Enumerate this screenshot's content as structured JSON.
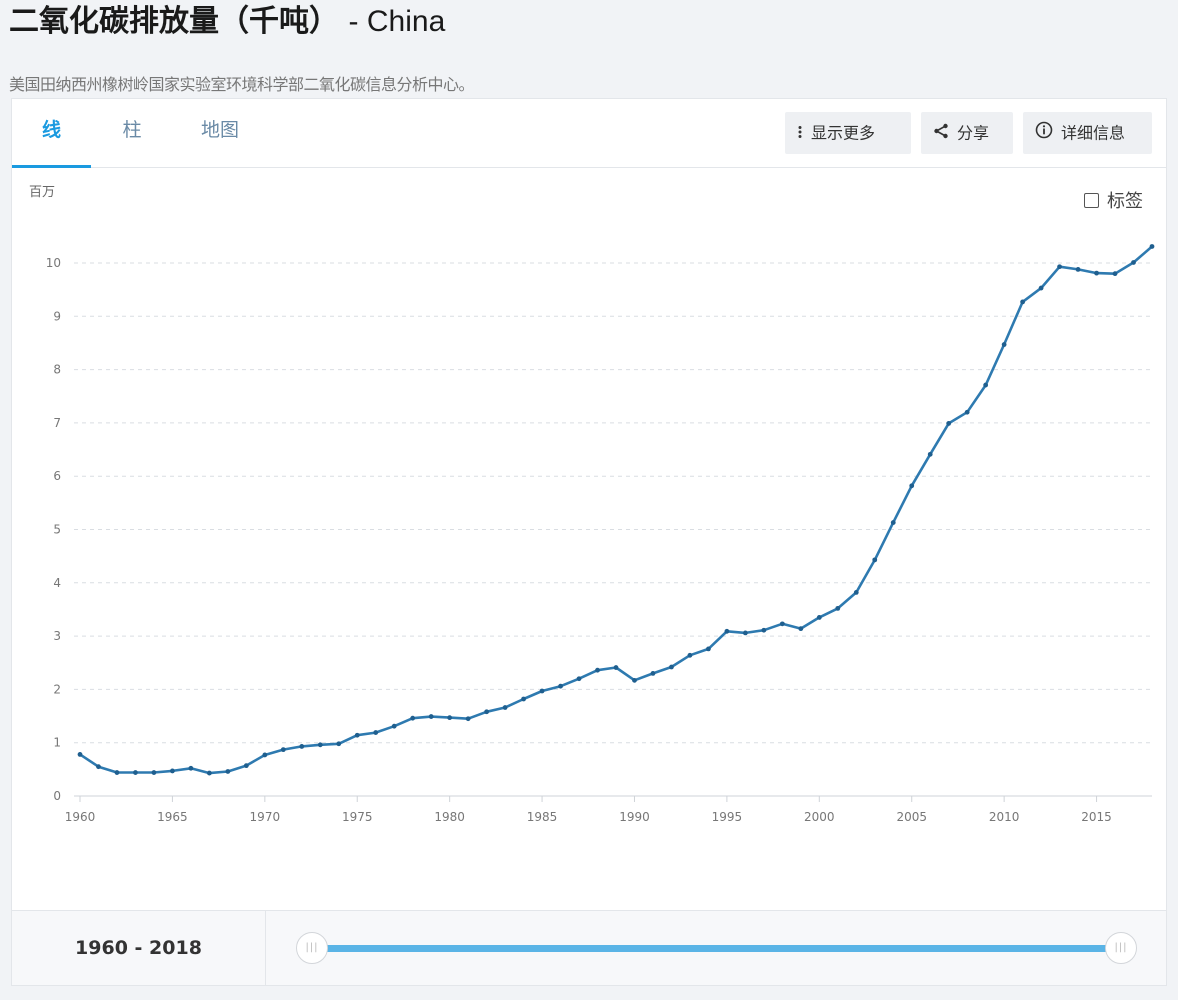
{
  "header": {
    "title": "二氧化碳排放量（千吨）",
    "country": "- China",
    "source": "美国田纳西州橡树岭国家实验室环境科学部二氧化碳信息分析中心。"
  },
  "tabs": [
    {
      "label": "线",
      "active": true
    },
    {
      "label": "柱",
      "active": false
    },
    {
      "label": "地图",
      "active": false
    }
  ],
  "toolbar": {
    "show_more": "显示更多",
    "share": "分享",
    "details": "详细信息"
  },
  "labels_toggle": {
    "label": "标签",
    "checked": false
  },
  "colors": {
    "line": "#2e7ab0",
    "accent": "#1a9ae0"
  },
  "chart_data": {
    "type": "line",
    "unit_label": "百万",
    "xlabel": "",
    "ylabel": "",
    "xlim": [
      1960,
      2018
    ],
    "ylim": [
      0,
      10
    ],
    "yticks": [
      0,
      1,
      2,
      3,
      4,
      5,
      6,
      7,
      8,
      9,
      10
    ],
    "xticks": [
      1960,
      1965,
      1970,
      1975,
      1980,
      1985,
      1990,
      1995,
      2000,
      2005,
      2010,
      2015
    ],
    "grid": true,
    "x": [
      1960,
      1961,
      1962,
      1963,
      1964,
      1965,
      1966,
      1967,
      1968,
      1969,
      1970,
      1971,
      1972,
      1973,
      1974,
      1975,
      1976,
      1977,
      1978,
      1979,
      1980,
      1981,
      1982,
      1983,
      1984,
      1985,
      1986,
      1987,
      1988,
      1989,
      1990,
      1991,
      1992,
      1993,
      1994,
      1995,
      1996,
      1997,
      1998,
      1999,
      2000,
      2001,
      2002,
      2003,
      2004,
      2005,
      2006,
      2007,
      2008,
      2009,
      2010,
      2011,
      2012,
      2013,
      2014,
      2015,
      2016,
      2017,
      2018
    ],
    "series": [
      {
        "values": [
          0.78,
          0.55,
          0.44,
          0.44,
          0.44,
          0.47,
          0.52,
          0.43,
          0.46,
          0.57,
          0.77,
          0.87,
          0.93,
          0.96,
          0.98,
          1.14,
          1.19,
          1.31,
          1.46,
          1.49,
          1.47,
          1.45,
          1.58,
          1.66,
          1.82,
          1.97,
          2.06,
          2.2,
          2.36,
          2.41,
          2.17,
          2.3,
          2.42,
          2.64,
          2.76,
          3.09,
          3.06,
          3.11,
          3.23,
          3.14,
          3.35,
          3.52,
          3.82,
          4.43,
          5.13,
          5.82,
          6.41,
          6.99,
          7.2,
          7.71,
          8.47,
          9.27,
          9.53,
          9.93,
          9.88,
          9.81,
          9.8,
          10.01,
          10.31
        ]
      }
    ]
  },
  "range": {
    "label": "1960 - 2018",
    "start": 1960,
    "end": 2018
  },
  "slider": {
    "grip": "|||"
  }
}
